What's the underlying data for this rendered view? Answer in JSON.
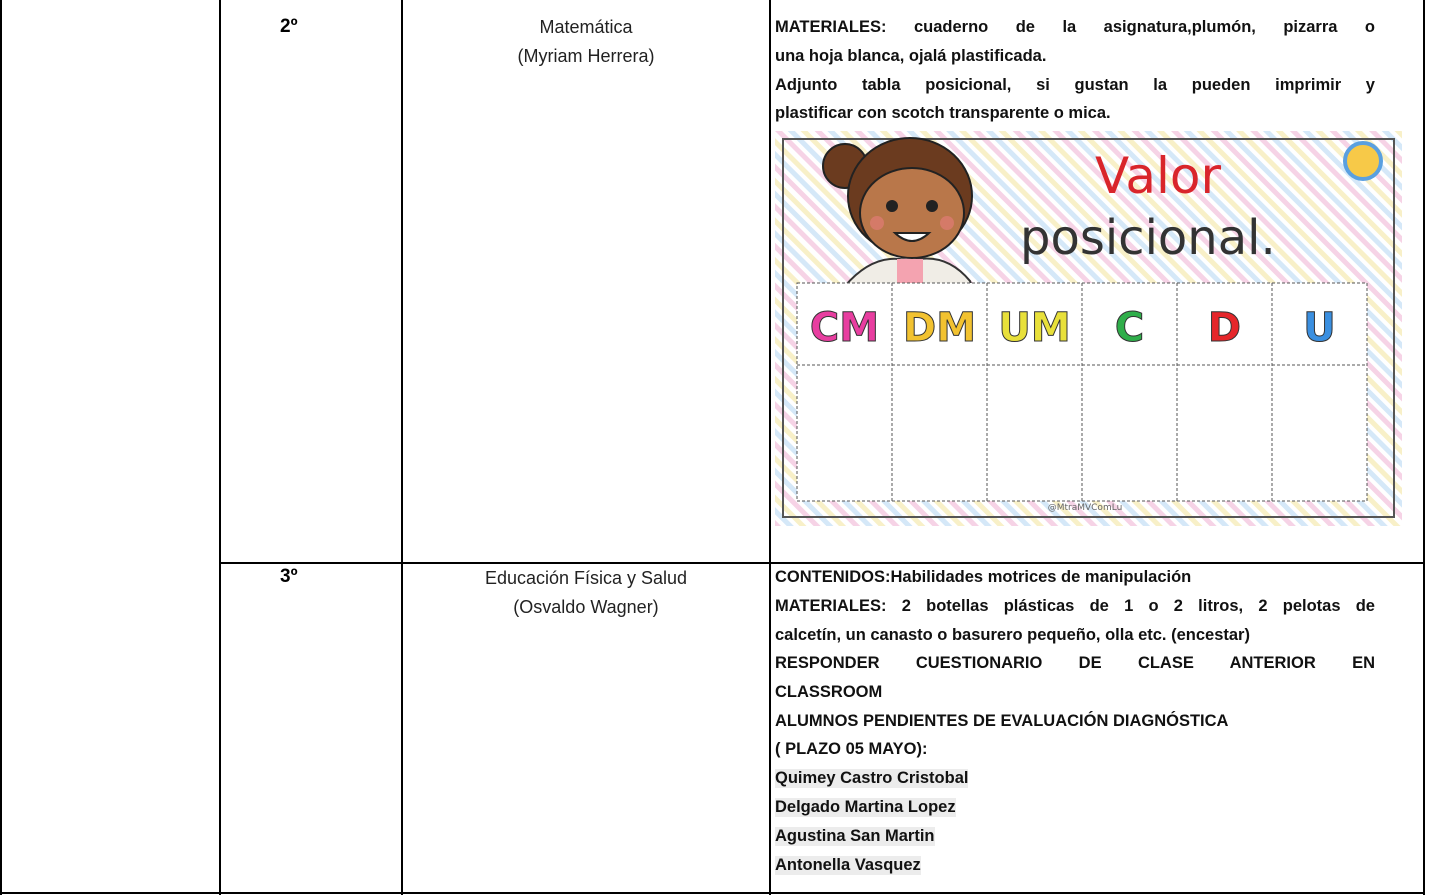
{
  "table": {
    "rows": [
      {
        "grade": "2º",
        "subject": "Matemática",
        "teacher": "(Myriam Herrera)",
        "lines": [
          "MATERIALES: cuaderno de la asignatura,plumón, pizarra o",
          "una hoja blanca, ojalá plastificada.",
          "Adjunto tabla posicional, si gustan la pueden imprimir y",
          "plastificar con scotch transparente o mica."
        ],
        "image": {
          "title": "Valor",
          "subtitle": "posicional.",
          "columns": [
            "CM",
            "DM",
            "UM",
            "C",
            "D",
            "U"
          ],
          "credit": "@MtraMVComLu"
        }
      },
      {
        "grade": "3º",
        "subject": "Educación Física y Salud",
        "teacher": "(Osvaldo Wagner)",
        "lines": [
          "CONTENIDOS:Habilidades motrices de manipulación",
          "MATERIALES: 2 botellas plásticas de 1 o 2 litros, 2 pelotas de",
          "calcetín, un canasto o basurero pequeño, olla etc. (encestar)",
          "RESPONDER CUESTIONARIO DE CLASE ANTERIOR EN",
          "CLASSROOM",
          "ALUMNOS PENDIENTES DE EVALUACIÓN DIAGNÓSTICA",
          "( PLAZO 05 MAYO):",
          "Quimey Castro Cristobal",
          "Delgado Martina Lopez",
          "Agustina San Martin",
          "Antonella Vasquez"
        ]
      }
    ]
  }
}
